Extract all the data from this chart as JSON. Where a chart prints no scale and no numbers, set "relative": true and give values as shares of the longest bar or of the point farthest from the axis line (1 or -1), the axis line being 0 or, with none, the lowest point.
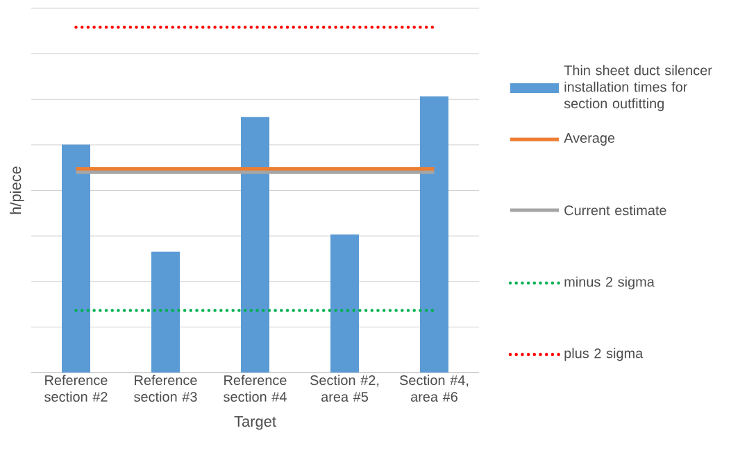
{
  "chart_data": {
    "type": "bar",
    "relative": true,
    "xlabel": "Target",
    "ylabel": "h/piece",
    "categories": [
      "Reference section #2",
      "Reference section #3",
      "Reference section #4",
      "Section #2, area #5",
      "Section #4, area #6"
    ],
    "series": [
      {
        "name": "Thin sheet duct silencer installation times for section outfitting",
        "color": "#5b9bd5",
        "values": [
          0.66,
          0.35,
          0.74,
          0.4,
          0.8
        ]
      },
      {
        "name": "Average",
        "type": "line",
        "color": "#ed7d31",
        "line_style": "solid",
        "values": [
          0.59,
          0.59,
          0.59,
          0.59,
          0.59
        ]
      },
      {
        "name": "Current estimate",
        "type": "line",
        "color": "#a5a5a5",
        "line_style": "solid",
        "values": [
          0.58,
          0.58,
          0.58,
          0.58,
          0.58
        ]
      },
      {
        "name": "minus 2 sigma",
        "type": "line",
        "color": "#00b050",
        "line_style": "dotted",
        "values": [
          0.18,
          0.18,
          0.18,
          0.18,
          0.18
        ]
      },
      {
        "name": "plus 2 sigma",
        "type": "line",
        "color": "#ff0000",
        "line_style": "dotted",
        "values": [
          1,
          1,
          1,
          1,
          1
        ]
      }
    ],
    "grid": "y",
    "legend": "right",
    "marker": "none"
  }
}
